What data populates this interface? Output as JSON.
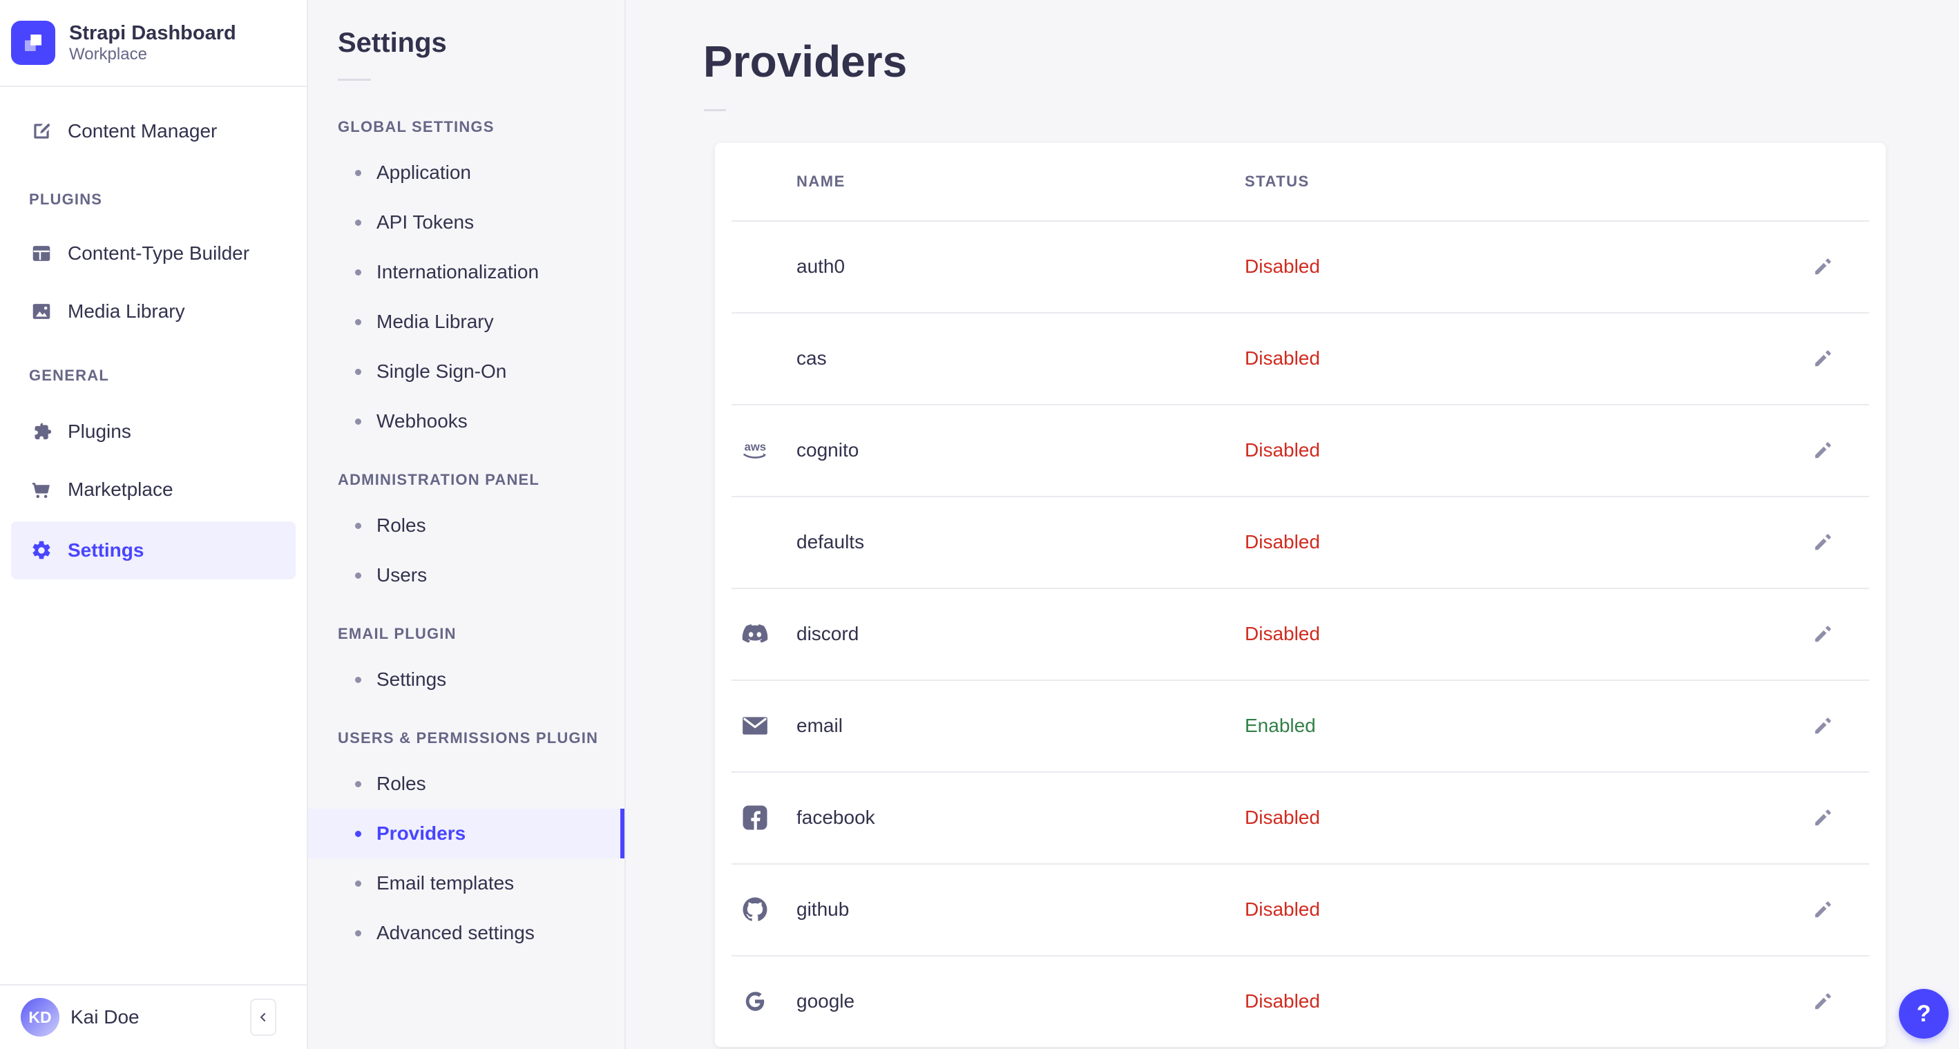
{
  "brand": {
    "name": "Strapi Dashboard",
    "workplace": "Workplace",
    "logo_icon": "strapi-logo",
    "logo_color": "#4945ff"
  },
  "nav": {
    "items": [
      {
        "label": "Content Manager",
        "icon": "write-icon",
        "active": false
      }
    ],
    "sections": [
      {
        "label": "PLUGINS",
        "items": [
          {
            "label": "Content-Type Builder",
            "icon": "layout-icon",
            "active": false
          },
          {
            "label": "Media Library",
            "icon": "picture-icon",
            "active": false
          }
        ]
      },
      {
        "label": "GENERAL",
        "items": [
          {
            "label": "Plugins",
            "icon": "puzzle-icon",
            "active": false
          },
          {
            "label": "Marketplace",
            "icon": "cart-icon",
            "active": false
          },
          {
            "label": "Settings",
            "icon": "gear-icon",
            "active": true
          }
        ]
      }
    ],
    "user": {
      "name": "Kai Doe",
      "initials": "KD"
    },
    "collapse_icon": "chevron-left-icon"
  },
  "subnav": {
    "title": "Settings",
    "sections": [
      {
        "label": "GLOBAL SETTINGS",
        "items": [
          "Application",
          "API Tokens",
          "Internationalization",
          "Media Library",
          "Single Sign-On",
          "Webhooks"
        ]
      },
      {
        "label": "ADMINISTRATION PANEL",
        "items": [
          "Roles",
          "Users"
        ]
      },
      {
        "label": "EMAIL PLUGIN",
        "items": [
          "Settings"
        ]
      },
      {
        "label": "USERS & PERMISSIONS PLUGIN",
        "items": [
          "Roles",
          "Providers",
          "Email templates",
          "Advanced settings"
        ],
        "active_item": "Providers"
      }
    ]
  },
  "main": {
    "title": "Providers",
    "table": {
      "columns": [
        "NAME",
        "STATUS"
      ],
      "rows": [
        {
          "name": "auth0",
          "icon": null,
          "status": "Disabled"
        },
        {
          "name": "cas",
          "icon": null,
          "status": "Disabled"
        },
        {
          "name": "cognito",
          "icon": "aws-icon",
          "status": "Disabled"
        },
        {
          "name": "defaults",
          "icon": null,
          "status": "Disabled"
        },
        {
          "name": "discord",
          "icon": "discord-icon",
          "status": "Disabled"
        },
        {
          "name": "email",
          "icon": "email-icon",
          "status": "Enabled"
        },
        {
          "name": "facebook",
          "icon": "facebook-icon",
          "status": "Disabled"
        },
        {
          "name": "github",
          "icon": "github-icon",
          "status": "Disabled"
        },
        {
          "name": "google",
          "icon": "google-icon",
          "status": "Disabled"
        }
      ],
      "row_action_icon": "pencil-icon"
    }
  },
  "help": {
    "icon": "question-mark-icon",
    "label": "?"
  },
  "colors": {
    "accent": "#4945ff",
    "accent_light": "#f0f0ff",
    "status": {
      "Enabled": "#328048",
      "Disabled": "#d02b20"
    },
    "icon_muted": "#666687",
    "divider": "#eaeaef"
  }
}
